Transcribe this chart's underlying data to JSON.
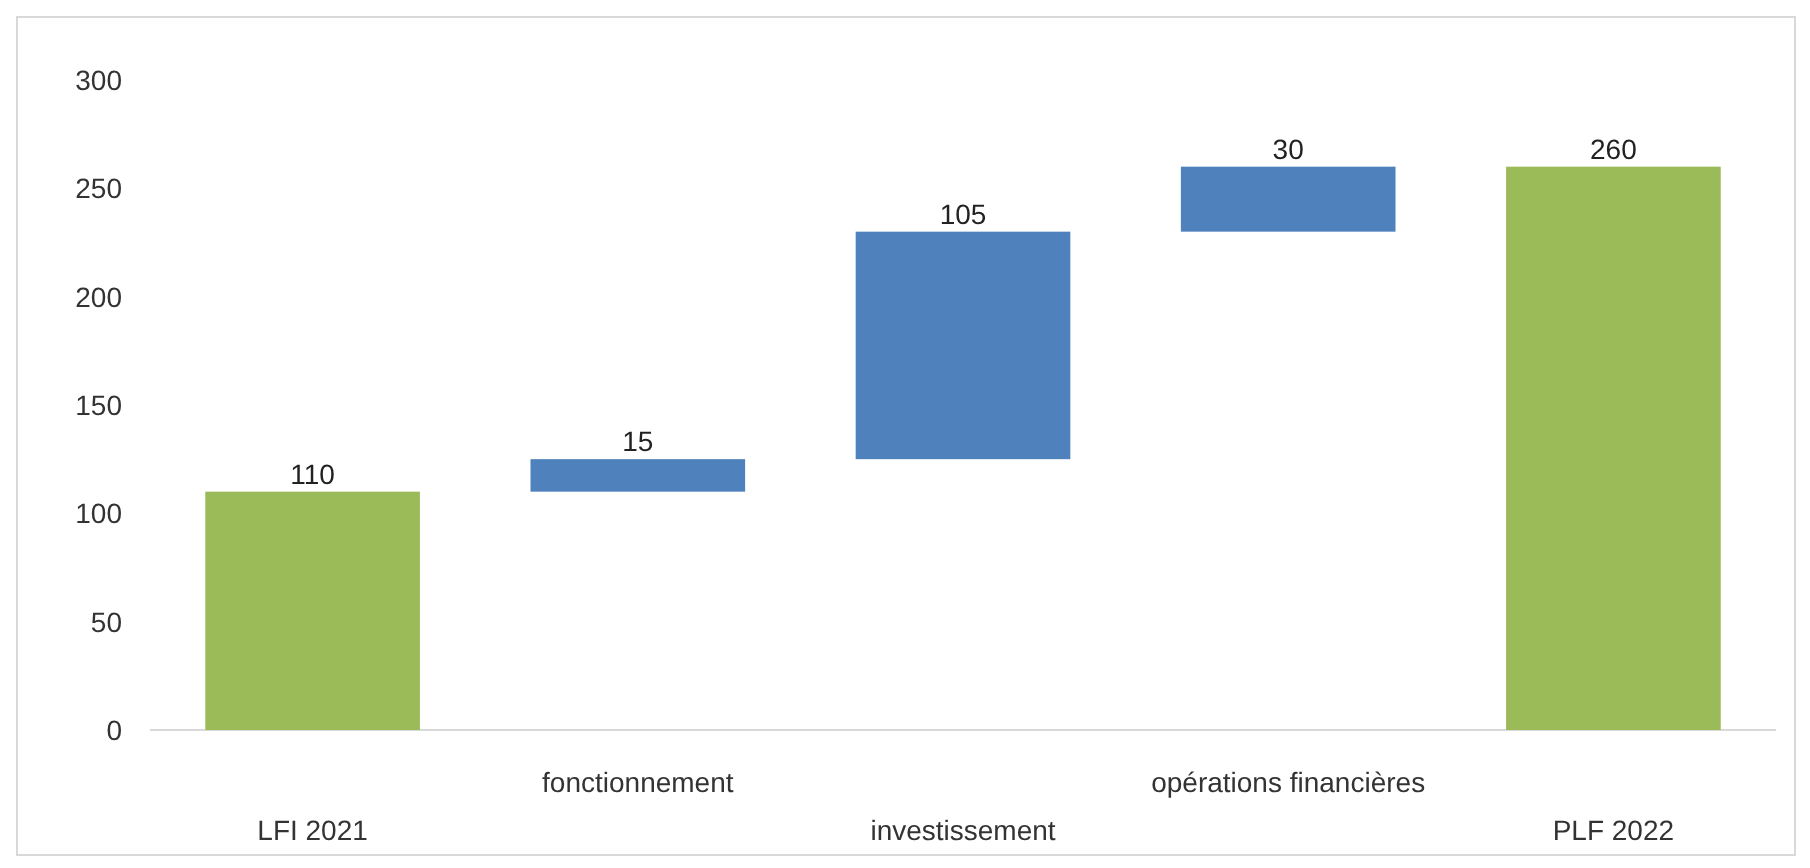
{
  "chart_data": {
    "type": "bar",
    "categories": [
      "LFI 2021",
      "fonctionnement",
      "investissement",
      "opérations financières",
      "PLF 2022"
    ],
    "values": [
      110,
      15,
      105,
      30,
      260
    ],
    "base": [
      0,
      110,
      125,
      230,
      0
    ],
    "colors": [
      "#9bbb59",
      "#4f81bd",
      "#4f81bd",
      "#4f81bd",
      "#9bbb59"
    ],
    "ylim": [
      0,
      300
    ],
    "yticks": [
      0,
      50,
      100,
      150,
      200,
      250,
      300
    ],
    "grid": false,
    "data_labels": true
  }
}
